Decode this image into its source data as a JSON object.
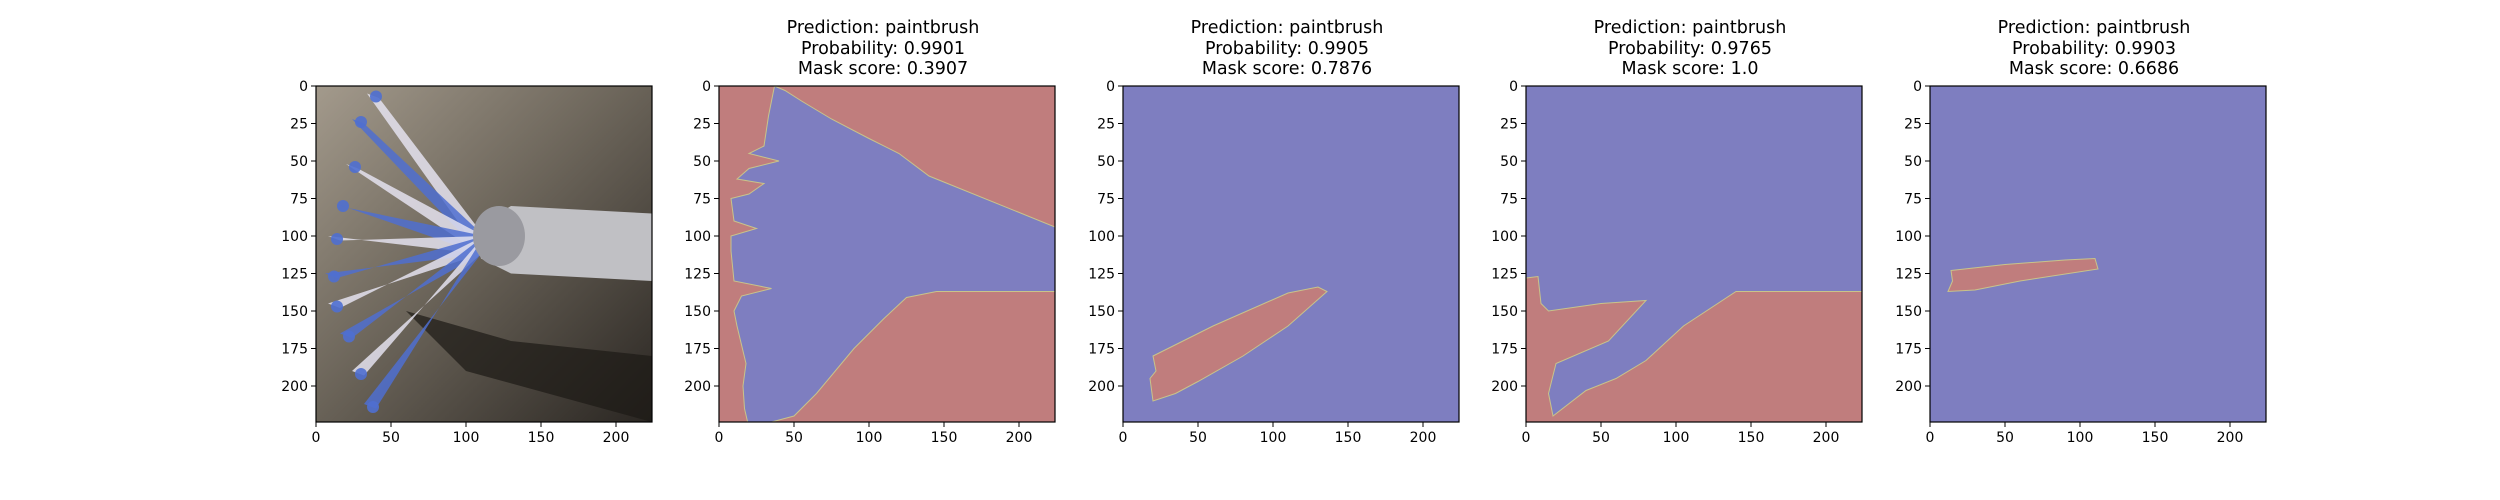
{
  "chart_data": [
    {
      "type": "image",
      "subject": "photo of a paintbrush with blue-tipped bristles and a metal ferrule on a dark grey surface",
      "title": "",
      "xlim": [
        0,
        224
      ],
      "ylim": [
        224,
        0
      ],
      "xticks": [
        0,
        50,
        100,
        150,
        200
      ],
      "yticks": [
        0,
        25,
        50,
        75,
        100,
        125,
        150,
        175,
        200
      ],
      "colors": {
        "bg_dark": "#2a2622",
        "bg_light": "#a39a8c",
        "metal": "#c0c0c4",
        "bristle_blue": "#4f6fd0",
        "bristle_white": "#e4e2ee"
      }
    },
    {
      "type": "mask",
      "title_lines": [
        "Prediction: paintbrush",
        "Probability: 0.9901",
        "Mask score: 0.3907"
      ],
      "prediction": "paintbrush",
      "probability": 0.9901,
      "mask_score": 0.3907,
      "xlim": [
        0,
        224
      ],
      "ylim": [
        224,
        0
      ],
      "xticks": [
        0,
        50,
        100,
        150,
        200
      ],
      "yticks": [
        0,
        25,
        50,
        75,
        100,
        125,
        150,
        175,
        200
      ],
      "background": "red",
      "region": [
        [
          37,
          0
        ],
        [
          44,
          3
        ],
        [
          55,
          10
        ],
        [
          75,
          22
        ],
        [
          100,
          35
        ],
        [
          120,
          45
        ],
        [
          140,
          60
        ],
        [
          224,
          94
        ],
        [
          224,
          137
        ],
        [
          145,
          137
        ],
        [
          125,
          141
        ],
        [
          110,
          155
        ],
        [
          90,
          175
        ],
        [
          65,
          205
        ],
        [
          50,
          220
        ],
        [
          20,
          228
        ],
        [
          17,
          215
        ],
        [
          16,
          200
        ],
        [
          18,
          185
        ],
        [
          12,
          160
        ],
        [
          10,
          150
        ],
        [
          15,
          140
        ],
        [
          35,
          135
        ],
        [
          10,
          130
        ],
        [
          8,
          110
        ],
        [
          8,
          100
        ],
        [
          25,
          95
        ],
        [
          10,
          90
        ],
        [
          8,
          75
        ],
        [
          20,
          72
        ],
        [
          30,
          65
        ],
        [
          12,
          62
        ],
        [
          20,
          55
        ],
        [
          40,
          50
        ],
        [
          20,
          45
        ],
        [
          30,
          40
        ],
        [
          33,
          20
        ]
      ],
      "colors": {
        "red": "#c07d7d",
        "blue": "#7e7ec0"
      }
    },
    {
      "type": "mask",
      "title_lines": [
        "Prediction: paintbrush",
        "Probability: 0.9905",
        "Mask score: 0.7876"
      ],
      "prediction": "paintbrush",
      "probability": 0.9905,
      "mask_score": 0.7876,
      "xlim": [
        0,
        224
      ],
      "ylim": [
        224,
        0
      ],
      "xticks": [
        0,
        50,
        100,
        150,
        200
      ],
      "yticks": [
        0,
        25,
        50,
        75,
        100,
        125,
        150,
        175,
        200
      ],
      "background": "blue",
      "region": [
        [
          20,
          180
        ],
        [
          60,
          160
        ],
        [
          110,
          138
        ],
        [
          130,
          134
        ],
        [
          136,
          137
        ],
        [
          110,
          160
        ],
        [
          80,
          180
        ],
        [
          50,
          197
        ],
        [
          35,
          205
        ],
        [
          20,
          210
        ],
        [
          18,
          195
        ],
        [
          22,
          190
        ]
      ],
      "colors": {
        "red": "#c07d7d",
        "blue": "#7e7ec0"
      }
    },
    {
      "type": "mask",
      "title_lines": [
        "Prediction: paintbrush",
        "Probability: 0.9765",
        "Mask score: 1.0"
      ],
      "prediction": "paintbrush",
      "probability": 0.9765,
      "mask_score": 1.0,
      "xlim": [
        0,
        224
      ],
      "ylim": [
        224,
        0
      ],
      "xticks": [
        0,
        50,
        100,
        150,
        200
      ],
      "yticks": [
        0,
        25,
        50,
        75,
        100,
        125,
        150,
        175,
        200
      ],
      "background": "blue",
      "region": [
        [
          0,
          128
        ],
        [
          8,
          127
        ],
        [
          10,
          145
        ],
        [
          15,
          150
        ],
        [
          50,
          145
        ],
        [
          80,
          143
        ],
        [
          55,
          170
        ],
        [
          20,
          185
        ],
        [
          15,
          205
        ],
        [
          18,
          220
        ],
        [
          40,
          203
        ],
        [
          60,
          195
        ],
        [
          80,
          183
        ],
        [
          105,
          160
        ],
        [
          140,
          137
        ],
        [
          224,
          137
        ],
        [
          224,
          224
        ],
        [
          0,
          224
        ]
      ],
      "colors": {
        "red": "#c07d7d",
        "blue": "#7e7ec0"
      }
    },
    {
      "type": "mask",
      "title_lines": [
        "Prediction: paintbrush",
        "Probability: 0.9903",
        "Mask score: 0.6686"
      ],
      "prediction": "paintbrush",
      "probability": 0.9903,
      "mask_score": 0.6686,
      "xlim": [
        0,
        224
      ],
      "ylim": [
        224,
        0
      ],
      "xticks": [
        0,
        50,
        100,
        150,
        200
      ],
      "yticks": [
        0,
        25,
        50,
        75,
        100,
        125,
        150,
        175,
        200
      ],
      "background": "blue",
      "region": [
        [
          14,
          123
        ],
        [
          50,
          119
        ],
        [
          90,
          116
        ],
        [
          110,
          115
        ],
        [
          112,
          122
        ],
        [
          60,
          130
        ],
        [
          30,
          136
        ],
        [
          12,
          137
        ],
        [
          15,
          130
        ]
      ],
      "colors": {
        "red": "#c07d7d",
        "blue": "#7e7ec0"
      }
    }
  ]
}
